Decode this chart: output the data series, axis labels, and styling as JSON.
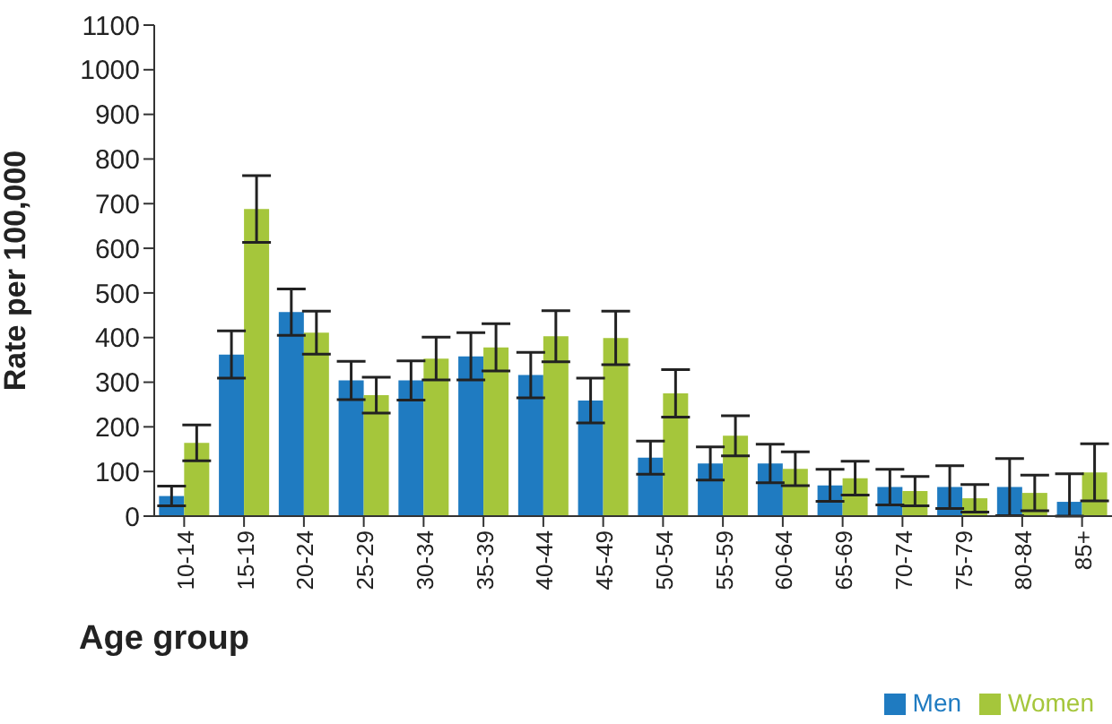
{
  "chart_data": {
    "type": "bar",
    "xlabel": "Age group",
    "ylabel": "Rate per 100,000",
    "categories": [
      "10-14",
      "15-19",
      "20-24",
      "25-29",
      "30-34",
      "35-39",
      "40-44",
      "45-49",
      "50-54",
      "55-59",
      "60-64",
      "65-69",
      "70-74",
      "75-79",
      "80-84",
      "85+"
    ],
    "series": [
      {
        "name": "Men",
        "color": "#1f7bc1",
        "values": [
          45,
          362,
          457,
          304,
          304,
          358,
          316,
          259,
          131,
          118,
          118,
          69,
          65,
          65,
          65,
          32
        ],
        "errors": [
          22,
          53,
          52,
          43,
          44,
          53,
          51,
          50,
          37,
          37,
          43,
          36,
          40,
          48,
          64,
          [
            0,
            95
          ]
        ]
      },
      {
        "name": "Women",
        "color": "#a5c63b",
        "values": [
          164,
          688,
          411,
          271,
          353,
          378,
          403,
          399,
          275,
          180,
          106,
          85,
          56,
          40,
          52,
          98
        ],
        "errors": [
          40,
          75,
          48,
          40,
          48,
          53,
          57,
          60,
          53,
          45,
          38,
          38,
          33,
          31,
          40,
          64
        ]
      }
    ],
    "ylim": [
      0,
      1100
    ],
    "yticks": [
      0,
      100,
      200,
      300,
      400,
      500,
      600,
      700,
      800,
      900,
      1000,
      1100
    ],
    "grid": false,
    "legend": "bottom right"
  }
}
